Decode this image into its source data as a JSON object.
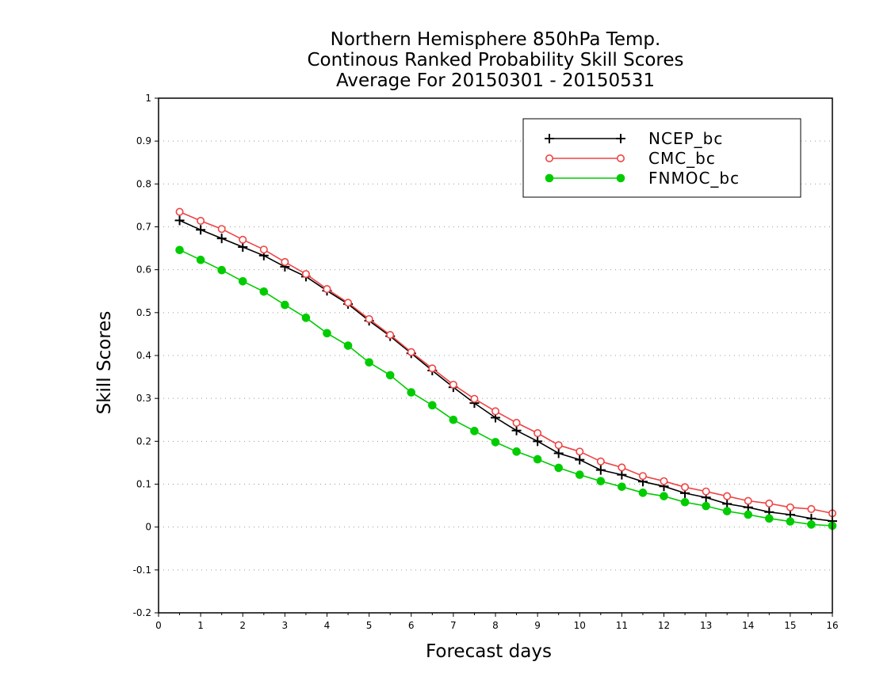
{
  "chart_data": {
    "type": "line",
    "title_lines": [
      "Northern Hemisphere 850hPa Temp.",
      "Continous Ranked Probability Skill Scores",
      "Average For 20150301 - 20150531"
    ],
    "xlabel": "Forecast days",
    "ylabel": "Skill Scores",
    "xlim": [
      0,
      16
    ],
    "ylim": [
      -0.2,
      1
    ],
    "xticks": [
      "0",
      "1",
      "2",
      "3",
      "4",
      "5",
      "6",
      "7",
      "8",
      "9",
      "10",
      "11",
      "12",
      "13",
      "14",
      "15",
      "16"
    ],
    "yticks": [
      "-0.2",
      "-0.1",
      "0",
      "0.1",
      "0.2",
      "0.3",
      "0.4",
      "0.5",
      "0.6",
      "0.7",
      "0.8",
      "0.9",
      "1"
    ],
    "grid": "horizontal dotted",
    "legend_position": "top-right",
    "x": [
      0.5,
      1,
      1.5,
      2,
      2.5,
      3,
      3.5,
      4,
      4.5,
      5,
      5.5,
      6,
      6.5,
      7,
      7.5,
      8,
      8.5,
      9,
      9.5,
      10,
      10.5,
      11,
      11.5,
      12,
      12.5,
      13,
      13.5,
      14,
      14.5,
      15,
      15.5,
      16
    ],
    "series": [
      {
        "name": "NCEP_bc",
        "color": "#000000",
        "marker": "plus",
        "values": [
          0.715,
          0.693,
          0.673,
          0.653,
          0.633,
          0.607,
          0.584,
          0.551,
          0.52,
          0.481,
          0.445,
          0.405,
          0.365,
          0.326,
          0.289,
          0.255,
          0.225,
          0.2,
          0.172,
          0.157,
          0.133,
          0.122,
          0.106,
          0.095,
          0.079,
          0.069,
          0.054,
          0.046,
          0.035,
          0.029,
          0.02,
          0.014
        ]
      },
      {
        "name": "CMC_bc",
        "color": "#ee4444",
        "marker": "open-circle",
        "values": [
          0.735,
          0.714,
          0.695,
          0.67,
          0.647,
          0.618,
          0.59,
          0.555,
          0.523,
          0.485,
          0.448,
          0.408,
          0.37,
          0.332,
          0.299,
          0.27,
          0.243,
          0.219,
          0.191,
          0.176,
          0.153,
          0.139,
          0.119,
          0.107,
          0.093,
          0.083,
          0.072,
          0.061,
          0.055,
          0.046,
          0.042,
          0.032
        ]
      },
      {
        "name": "FNMOC_bc",
        "color": "#00cc00",
        "marker": "filled-circle",
        "values": [
          0.646,
          0.623,
          0.599,
          0.573,
          0.549,
          0.518,
          0.488,
          0.452,
          0.423,
          0.384,
          0.354,
          0.314,
          0.284,
          0.25,
          0.224,
          0.198,
          0.176,
          0.158,
          0.138,
          0.122,
          0.107,
          0.094,
          0.08,
          0.072,
          0.058,
          0.049,
          0.037,
          0.029,
          0.02,
          0.013,
          0.006,
          0.003
        ]
      }
    ]
  }
}
